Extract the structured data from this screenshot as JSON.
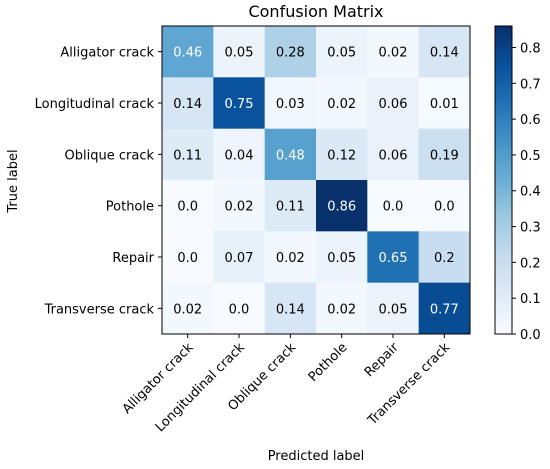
{
  "chart_data": {
    "type": "heatmap",
    "title": "Confusion Matrix",
    "xlabel": "Predicted label",
    "ylabel": "True label",
    "x_categories": [
      "Alligator crack",
      "Longitudinal crack",
      "Oblique crack",
      "Pothole",
      "Repair",
      "Transverse crack"
    ],
    "y_categories": [
      "Alligator crack",
      "Longitudinal crack",
      "Oblique crack",
      "Pothole",
      "Repair",
      "Transverse crack"
    ],
    "values": [
      [
        0.46,
        0.05,
        0.28,
        0.05,
        0.02,
        0.14
      ],
      [
        0.14,
        0.75,
        0.03,
        0.02,
        0.06,
        0.01
      ],
      [
        0.11,
        0.04,
        0.48,
        0.12,
        0.06,
        0.19
      ],
      [
        0.0,
        0.02,
        0.11,
        0.86,
        0.0,
        0.0
      ],
      [
        0.0,
        0.07,
        0.02,
        0.05,
        0.65,
        0.2
      ],
      [
        0.02,
        0.0,
        0.14,
        0.02,
        0.05,
        0.77
      ]
    ],
    "value_labels": [
      [
        "0.46",
        "0.05",
        "0.28",
        "0.05",
        "0.02",
        "0.14"
      ],
      [
        "0.14",
        "0.75",
        "0.03",
        "0.02",
        "0.06",
        "0.01"
      ],
      [
        "0.11",
        "0.04",
        "0.48",
        "0.12",
        "0.06",
        "0.19"
      ],
      [
        "0.0",
        "0.02",
        "0.11",
        "0.86",
        "0.0",
        "0.0"
      ],
      [
        "0.0",
        "0.07",
        "0.02",
        "0.05",
        "0.65",
        "0.2"
      ],
      [
        "0.02",
        "0.0",
        "0.14",
        "0.02",
        "0.05",
        "0.77"
      ]
    ],
    "colormap": "Blues",
    "colorbar": {
      "range": [
        0.0,
        0.86
      ],
      "ticks": [
        0.0,
        0.1,
        0.2,
        0.3,
        0.4,
        0.5,
        0.6,
        0.7,
        0.8
      ],
      "tick_labels": [
        "0.0",
        "0.1",
        "0.2",
        "0.3",
        "0.4",
        "0.5",
        "0.6",
        "0.7",
        "0.8"
      ]
    },
    "grid": false
  }
}
